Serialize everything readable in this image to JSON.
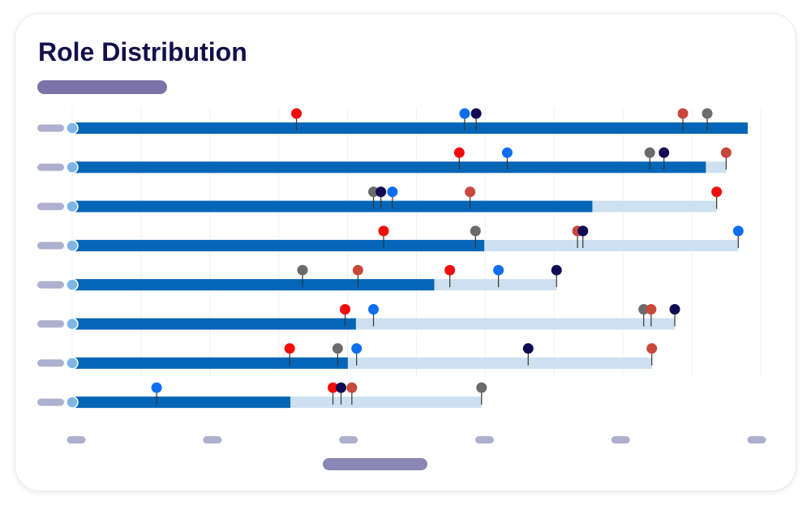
{
  "title": "Role Distribution",
  "colors": {
    "title": "#14104a",
    "bar_dark": "#0566b7",
    "bar_light": "#cde0f1",
    "grid": "#f1f1f4",
    "placeholder_pill": "#aeb0cf",
    "subtitle_pill": "#7b73a8",
    "legend_pill": "#8987b4",
    "stem": "#333333",
    "start_dot": "#7fb6e6"
  },
  "marker_colors": {
    "red": "#f20d0d",
    "blue": "#0f6ef0",
    "navy": "#120a52",
    "rust": "#c8483a",
    "gray": "#6b6b6b"
  },
  "chart_data": {
    "type": "bar",
    "orientation": "horizontal",
    "note_labels_hidden": true,
    "xlim": [
      0,
      100
    ],
    "grid": true,
    "rows": [
      {
        "progress": 100,
        "total": 100,
        "markers": [
          {
            "color": "red",
            "value": 33.2
          },
          {
            "color": "blue",
            "value": 58.1
          },
          {
            "color": "navy",
            "value": 59.8
          },
          {
            "color": "rust",
            "value": 90.4
          },
          {
            "color": "gray",
            "value": 94.0
          }
        ]
      },
      {
        "progress": 93.8,
        "total": 96.8,
        "markers": [
          {
            "color": "red",
            "value": 57.3
          },
          {
            "color": "blue",
            "value": 64.4
          },
          {
            "color": "gray",
            "value": 85.5
          },
          {
            "color": "navy",
            "value": 87.6
          },
          {
            "color": "rust",
            "value": 96.8
          }
        ]
      },
      {
        "progress": 77.0,
        "total": 95.4,
        "markers": [
          {
            "color": "gray",
            "value": 44.6
          },
          {
            "color": "navy",
            "value": 45.7
          },
          {
            "color": "blue",
            "value": 47.4
          },
          {
            "color": "rust",
            "value": 58.9
          },
          {
            "color": "red",
            "value": 95.4
          }
        ]
      },
      {
        "progress": 61.0,
        "total": 98.6,
        "markers": [
          {
            "color": "red",
            "value": 46.1
          },
          {
            "color": "gray",
            "value": 59.7
          },
          {
            "color": "rust",
            "value": 74.8
          },
          {
            "color": "navy",
            "value": 75.6
          },
          {
            "color": "blue",
            "value": 98.6
          }
        ]
      },
      {
        "progress": 53.6,
        "total": 71.7,
        "markers": [
          {
            "color": "gray",
            "value": 34.1
          },
          {
            "color": "rust",
            "value": 42.3
          },
          {
            "color": "red",
            "value": 55.9
          },
          {
            "color": "blue",
            "value": 63.1
          },
          {
            "color": "navy",
            "value": 71.7
          }
        ]
      },
      {
        "progress": 42.0,
        "total": 89.2,
        "markers": [
          {
            "color": "red",
            "value": 40.4
          },
          {
            "color": "blue",
            "value": 44.6
          },
          {
            "color": "gray",
            "value": 84.6
          },
          {
            "color": "rust",
            "value": 85.7
          },
          {
            "color": "navy",
            "value": 89.2
          }
        ]
      },
      {
        "progress": 40.8,
        "total": 85.8,
        "markers": [
          {
            "color": "red",
            "value": 32.2
          },
          {
            "color": "gray",
            "value": 39.3
          },
          {
            "color": "blue",
            "value": 42.1
          },
          {
            "color": "navy",
            "value": 67.5
          },
          {
            "color": "rust",
            "value": 85.8
          }
        ]
      },
      {
        "progress": 32.3,
        "total": 60.6,
        "markers": [
          {
            "color": "blue",
            "value": 12.5
          },
          {
            "color": "red",
            "value": 38.6
          },
          {
            "color": "navy",
            "value": 39.8
          },
          {
            "color": "rust",
            "value": 41.4
          },
          {
            "color": "gray",
            "value": 60.6
          }
        ]
      }
    ],
    "x_tick_count": 6
  }
}
